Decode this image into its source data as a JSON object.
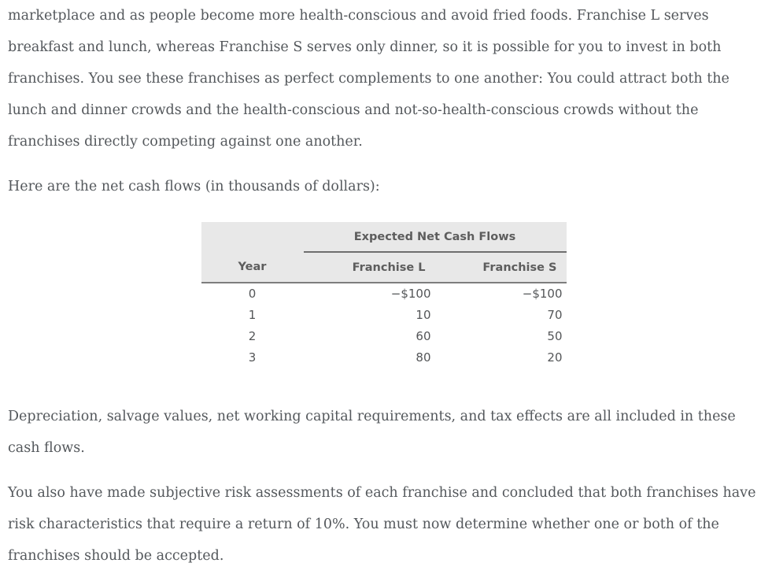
{
  "page": {
    "background_color": "#ffffff",
    "body_text_color": "#54585c"
  },
  "paragraphs": {
    "intro": "marketplace and as people become more health-conscious and avoid fried foods. Franchise L serves breakfast and lunch, whereas Franchise S serves only dinner, so it is possible for you to invest in both franchises. You see these franchises as perfect complements to one another: You could attract both the lunch and dinner crowds and the health-conscious and not-so-health-conscious crowds without the franchises directly competing against one another.",
    "cashflow_intro": "Here are the net cash flows (in thousands of dollars):",
    "depreciation_note": "Depreciation, salvage values, net working capital requirements, and tax effects are all included in these cash flows.",
    "risk_assessment": "You also have made subjective risk assessments of each franchise and concluded that both franchises have risk characteristics that require a return of 10%. You must now determine whether one or both of the franchises should be accepted."
  },
  "table": {
    "group_header": "Expected Net Cash Flows",
    "columns": [
      "Year",
      "Franchise L",
      "Franchise S"
    ],
    "rows": [
      {
        "year": "0",
        "franchise_l": "−$100",
        "franchise_s": "−$100"
      },
      {
        "year": "1",
        "franchise_l": "10",
        "franchise_s": "70"
      },
      {
        "year": "2",
        "franchise_l": "60",
        "franchise_s": "50"
      },
      {
        "year": "3",
        "franchise_l": "80",
        "franchise_s": "20"
      }
    ],
    "header_bg_color": "#e8e8e8",
    "header_text_color": "#5d5d5d",
    "border_color": "#7d7d7d"
  }
}
